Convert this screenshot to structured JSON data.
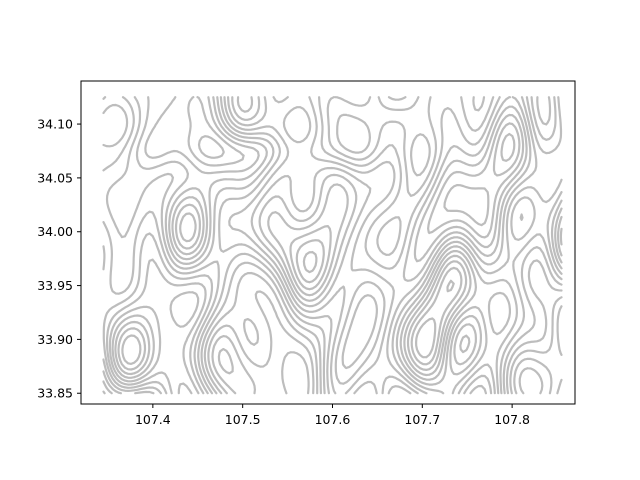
{
  "chart_data": {
    "type": "contour",
    "title": "",
    "xlabel": "",
    "ylabel": "",
    "xlim": [
      107.32,
      107.87
    ],
    "ylim": [
      33.84,
      34.14
    ],
    "data_extent": {
      "x": [
        107.345,
        107.855
      ],
      "y": [
        33.85,
        34.125
      ]
    },
    "x_ticks": [
      {
        "value": 107.4,
        "label": "107.4"
      },
      {
        "value": 107.5,
        "label": "107.5"
      },
      {
        "value": 107.6,
        "label": "107.6"
      },
      {
        "value": 107.7,
        "label": "107.7"
      },
      {
        "value": 107.8,
        "label": "107.8"
      }
    ],
    "y_ticks": [
      {
        "value": 33.85,
        "label": "33.85"
      },
      {
        "value": 33.9,
        "label": "33.90"
      },
      {
        "value": 33.95,
        "label": "33.95"
      },
      {
        "value": 34.0,
        "label": "34.00"
      },
      {
        "value": 34.05,
        "label": "34.05"
      },
      {
        "value": 34.1,
        "label": "34.10"
      }
    ],
    "contour_color": "#bdbdbd",
    "grid": false,
    "legend": "none"
  }
}
